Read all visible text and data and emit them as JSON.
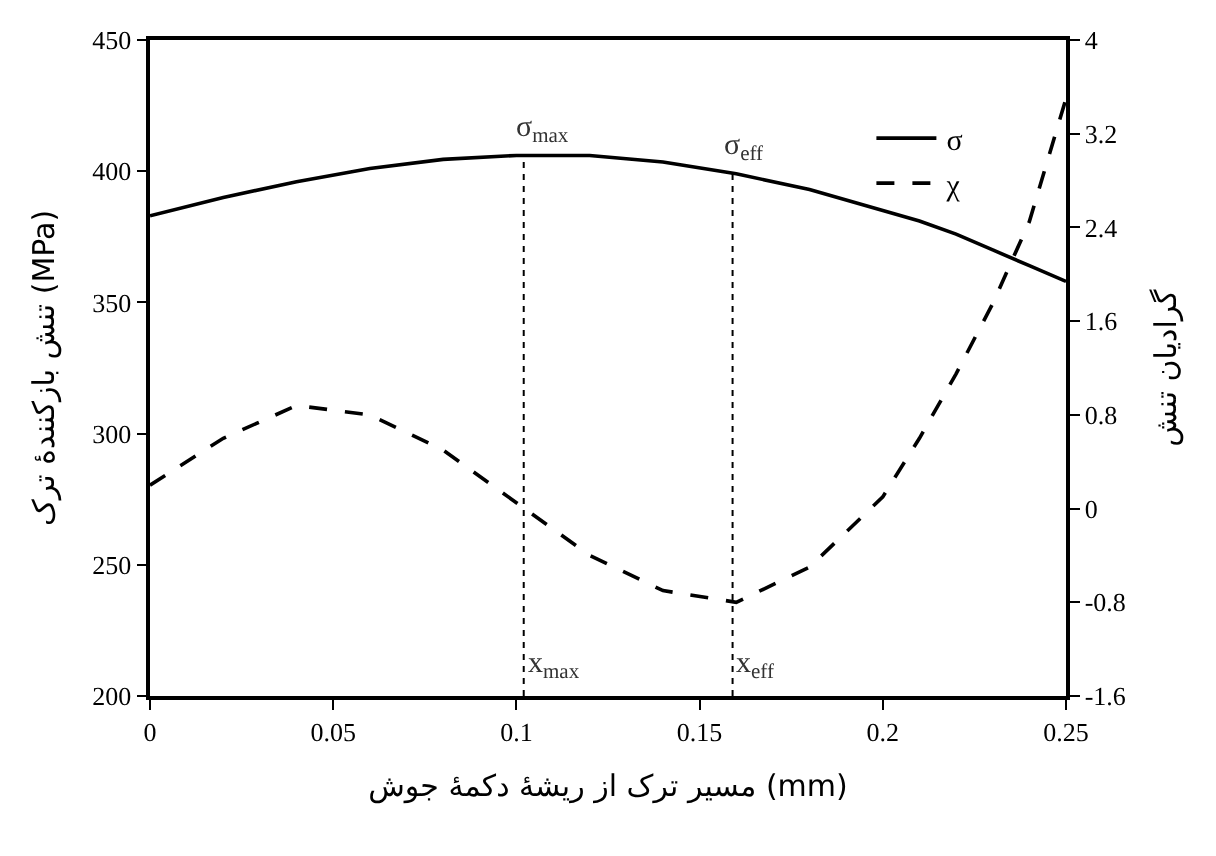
{
  "chart_data": {
    "type": "line",
    "xlabel": "مسیر ترک از ریشهٔ دکمهٔ جوش (mm)",
    "ylabel": "تنش بازکنندهٔ ترک (MPa)",
    "y2label": "گرادیان تنش",
    "x": [
      0,
      0.02,
      0.04,
      0.06,
      0.08,
      0.1,
      0.12,
      0.14,
      0.16,
      0.18,
      0.2,
      0.21,
      0.22,
      0.23,
      0.24,
      0.25
    ],
    "series": [
      {
        "name": "σ",
        "color": "#000000",
        "line_style": "solid",
        "values": [
          383,
          390,
          396,
          401,
          404.5,
          406,
          406,
          403.5,
          399,
          393,
          385,
          381,
          376,
          370,
          364,
          358
        ]
      },
      {
        "name": "χ",
        "color": "#000000",
        "line_style": "dashed",
        "axis": "y2",
        "values": [
          0.2,
          0.6,
          0.88,
          0.8,
          0.5,
          0.05,
          -0.4,
          -0.7,
          -0.8,
          -0.5,
          0.1,
          0.6,
          1.15,
          1.75,
          2.45,
          3.5
        ]
      }
    ],
    "xlim": [
      0,
      0.25
    ],
    "xticks": [
      0,
      0.05,
      0.1,
      0.15,
      0.2,
      0.25
    ],
    "ylim": [
      200,
      450
    ],
    "yticks": [
      200,
      250,
      300,
      350,
      400,
      450
    ],
    "y2lim": [
      -1.6,
      4
    ],
    "y2ticks": [
      -1.6,
      -0.8,
      0,
      0.8,
      1.6,
      2.4,
      3.2,
      4
    ],
    "ref_lines": [
      {
        "axis": "x",
        "value": 0.102,
        "label": "x$_{max}$",
        "line_style": "dotted"
      },
      {
        "axis": "x",
        "value": 0.159,
        "label": "x$_{eff}$",
        "line_style": "dotted"
      }
    ],
    "annotations": [
      {
        "text": "σ$_{max}$",
        "x": 0.102,
        "y": 406
      },
      {
        "text": "σ$_{eff}$",
        "x": 0.159,
        "y": 399
      }
    ],
    "legend": "top right",
    "marker": "none"
  }
}
